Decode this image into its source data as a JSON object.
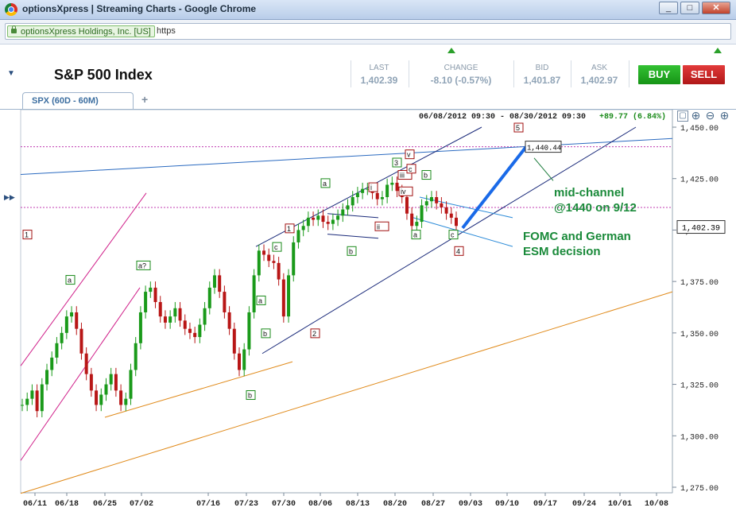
{
  "window": {
    "title": "optionsXpress | Streaming Charts - Google Chrome",
    "buttons": [
      "_",
      "□",
      "✕"
    ]
  },
  "address_bar": {
    "identity": "optionsXpress Holdings, Inc. [US]",
    "url": "https"
  },
  "header": {
    "symbol_name": "S&P 500 Index",
    "quote": {
      "last_label": "LAST",
      "last": "1,402.39",
      "change_label": "CHANGE",
      "change": "-8.10 (-0.57%)",
      "bid_label": "BID",
      "bid": "1,401.87",
      "ask_label": "ASK",
      "ask": "1,402.97"
    },
    "buy_label": "BUY",
    "sell_label": "SELL",
    "colors": {
      "buy": "#1aa81a",
      "sell": "#d0202a",
      "quote_text": "#8fa3b6"
    }
  },
  "tabs": [
    {
      "label": "SPX (60D - 60M)"
    }
  ],
  "add_tab_label": "+",
  "chart_info": {
    "range": "06/08/2012 09:30 - 08/30/2012 09:30",
    "change": "+89.77 (6.84%)"
  },
  "chart_data": {
    "type": "candlestick",
    "y_ticks": [
      "1,450.00",
      "1,425.00",
      "1,400.00",
      "1,375.00",
      "1,350.00",
      "1,325.00",
      "1,300.00",
      "1,275.00"
    ],
    "x_ticks": [
      "06/11",
      "06/18",
      "06/25",
      "07/02",
      "07/16",
      "07/23",
      "07/30",
      "08/06",
      "08/13",
      "08/20",
      "08/27",
      "09/03",
      "09/10",
      "09/17",
      "09/24",
      "10/01",
      "10/08"
    ],
    "ylim": [
      1275,
      1450
    ],
    "last_price_label": "1,402.39",
    "target_price_label": "1,440.44",
    "wave_labels": [
      "1",
      "a",
      "a?",
      "c",
      "1",
      "a",
      "b",
      "b",
      "2",
      "a",
      "b",
      "i",
      "ii",
      "iii",
      "iv",
      "v",
      "c",
      "3",
      "b",
      "a",
      "c",
      "4",
      "5"
    ],
    "annotations": [
      "mid-channel @1440 on 9/12",
      "FOMC and German ESM decision"
    ],
    "price_series_close": [
      1315,
      1318,
      1322,
      1312,
      1325,
      1332,
      1338,
      1345,
      1350,
      1358,
      1360,
      1352,
      1340,
      1330,
      1322,
      1315,
      1320,
      1325,
      1330,
      1322,
      1315,
      1318,
      1332,
      1345,
      1360,
      1370,
      1372,
      1365,
      1358,
      1355,
      1358,
      1362,
      1356,
      1352,
      1350,
      1348,
      1354,
      1362,
      1372,
      1378,
      1370,
      1360,
      1352,
      1340,
      1332,
      1342,
      1360,
      1378,
      1390,
      1388,
      1385,
      1384,
      1376,
      1358,
      1378,
      1394,
      1400,
      1402,
      1406,
      1405,
      1407,
      1404,
      1403,
      1405,
      1407,
      1410,
      1412,
      1416,
      1418,
      1420,
      1420,
      1418,
      1415,
      1416,
      1422,
      1423,
      1419,
      1416,
      1408,
      1402,
      1404,
      1412,
      1414,
      1416,
      1413,
      1411,
      1408,
      1406,
      1402
    ]
  }
}
